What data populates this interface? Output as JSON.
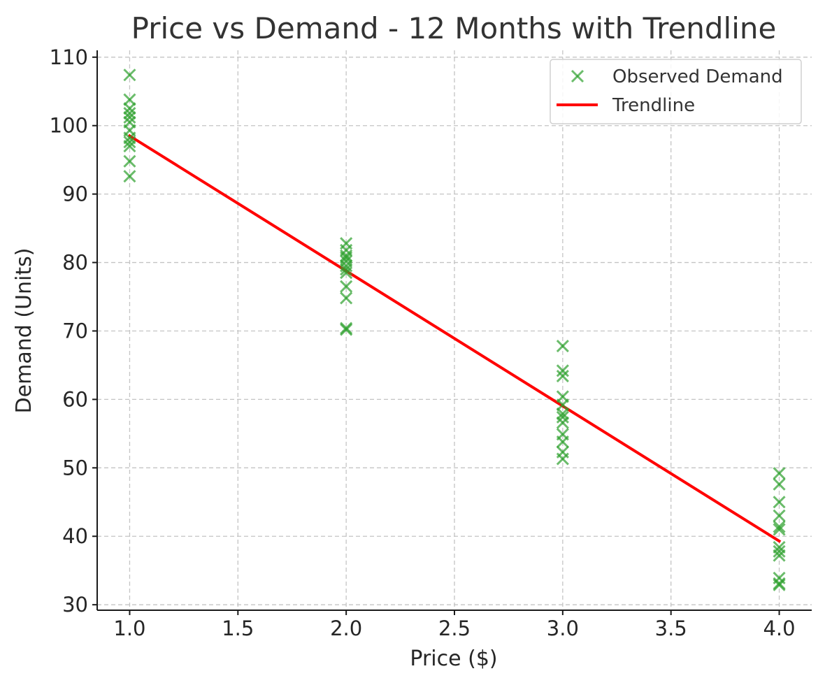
{
  "chart_data": {
    "type": "scatter",
    "title": "Price vs Demand - 12 Months with Trendline",
    "xlabel": "Price ($)",
    "ylabel": "Demand (Units)",
    "xlim": [
      0.85,
      4.15
    ],
    "ylim": [
      29.2,
      111.0
    ],
    "x_ticks": [
      1.0,
      1.5,
      2.0,
      2.5,
      3.0,
      3.5,
      4.0
    ],
    "x_tick_labels": [
      "1.0",
      "1.5",
      "2.0",
      "2.5",
      "3.0",
      "3.5",
      "4.0"
    ],
    "y_ticks": [
      30,
      40,
      50,
      60,
      70,
      80,
      90,
      100,
      110
    ],
    "y_tick_labels": [
      "30",
      "40",
      "50",
      "60",
      "70",
      "80",
      "90",
      "100",
      "110"
    ],
    "grid": true,
    "legend_position": "top-right",
    "series": [
      {
        "name": "Observed Demand",
        "kind": "scatter",
        "marker": "x",
        "color": "#2ca02c",
        "x": [
          1,
          1,
          1,
          1,
          1,
          1,
          1,
          1,
          1,
          1,
          1,
          1,
          2,
          2,
          2,
          2,
          2,
          2,
          2,
          2,
          2,
          2,
          2,
          2,
          3,
          3,
          3,
          3,
          3,
          3,
          3,
          3,
          3,
          3,
          3,
          3,
          4,
          4,
          4,
          4,
          4,
          4,
          4,
          4,
          4,
          4,
          4,
          4
        ],
        "y": [
          107.4,
          103.8,
          101.8,
          101.2,
          100.5,
          99.3,
          98.2,
          97.6,
          97.0,
          94.8,
          92.6,
          102.5,
          82.8,
          81.8,
          81.0,
          80.2,
          79.5,
          78.5,
          76.5,
          74.8,
          70.4,
          70.2,
          80.7,
          79.0,
          67.8,
          64.2,
          63.4,
          60.4,
          59.2,
          57.9,
          57.4,
          56.6,
          54.9,
          53.8,
          52.3,
          51.3,
          49.2,
          47.6,
          45.0,
          43.0,
          41.4,
          41.0,
          38.4,
          37.8,
          37.2,
          33.9,
          33.1,
          32.9
        ]
      },
      {
        "name": "Trendline",
        "kind": "line",
        "color": "#ff0000",
        "x": [
          1.0,
          4.0
        ],
        "y": [
          98.5,
          39.3
        ]
      }
    ]
  }
}
